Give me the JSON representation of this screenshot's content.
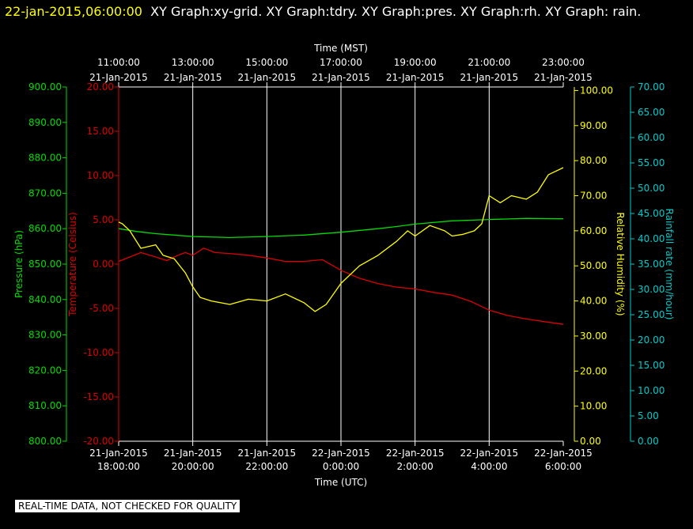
{
  "header": {
    "timestamp": "22-jan-2015,06:00:00",
    "titles": "XY Graph:xy-grid.  XY Graph:tdry.  XY Graph:pres.  XY Graph:rh.  XY Graph: rain."
  },
  "footer": {
    "notice": "REAL-TIME DATA, NOT CHECKED FOR QUALITY"
  },
  "colors": {
    "pressure": "#00dd00",
    "temperature": "#dd0000",
    "humidity": "#ffff00",
    "rain": "#00cccc",
    "grid": "#ffffff"
  },
  "chart_data": {
    "type": "line",
    "top_axis": {
      "label": "Time (MST)",
      "ticks": [
        {
          "time": "11:00:00",
          "date": "21-Jan-2015"
        },
        {
          "time": "13:00:00",
          "date": "21-Jan-2015"
        },
        {
          "time": "15:00:00",
          "date": "21-Jan-2015"
        },
        {
          "time": "17:00:00",
          "date": "21-Jan-2015"
        },
        {
          "time": "19:00:00",
          "date": "21-Jan-2015"
        },
        {
          "time": "21:00:00",
          "date": "21-Jan-2015"
        },
        {
          "time": "23:00:00",
          "date": "21-Jan-2015"
        }
      ]
    },
    "bottom_axis": {
      "label": "Time (UTC)",
      "ticks": [
        {
          "date": "21-Jan-2015",
          "time": "18:00:00"
        },
        {
          "date": "21-Jan-2015",
          "time": "20:00:00"
        },
        {
          "date": "21-Jan-2015",
          "time": "22:00:00"
        },
        {
          "date": "22-Jan-2015",
          "time": "0:00:00"
        },
        {
          "date": "22-Jan-2015",
          "time": "2:00:00"
        },
        {
          "date": "22-Jan-2015",
          "time": "4:00:00"
        },
        {
          "date": "22-Jan-2015",
          "time": "6:00:00"
        }
      ],
      "xlim": [
        0,
        12
      ]
    },
    "axes": {
      "pressure": {
        "label": "Pressure (hPa)",
        "ylim": [
          800,
          900
        ],
        "ticks": [
          "800.00",
          "810.00",
          "820.00",
          "830.00",
          "840.00",
          "850.00",
          "860.00",
          "870.00",
          "880.00",
          "890.00",
          "900.00"
        ]
      },
      "temperature": {
        "label": "Temperature (Celsius)",
        "ylim": [
          -20,
          20
        ],
        "ticks": [
          "-20.00",
          "-15.00",
          "-10.00",
          "-5.00",
          "0.00",
          "5.00",
          "10.00",
          "15.00",
          "20.00"
        ]
      },
      "humidity": {
        "label": "Relative Humidity (%)",
        "ylim": [
          0,
          101
        ],
        "ticks": [
          "0.00",
          "10.00",
          "20.00",
          "30.00",
          "40.00",
          "50.00",
          "60.00",
          "70.00",
          "80.00",
          "90.00",
          "100.00"
        ]
      },
      "rain": {
        "label": "Rainfall rate (mm/hour)",
        "ylim": [
          0,
          70
        ],
        "ticks": [
          "0.00",
          "5.00",
          "10.00",
          "15.00",
          "20.00",
          "25.00",
          "30.00",
          "35.00",
          "40.00",
          "45.00",
          "50.00",
          "55.00",
          "60.00",
          "65.00",
          "70.00"
        ]
      }
    },
    "series": [
      {
        "axis": "pressure",
        "x": [
          0,
          0.5,
          1,
          1.5,
          2,
          3,
          4,
          5,
          6,
          7,
          7.5,
          8,
          9,
          10,
          11,
          12
        ],
        "y": [
          860,
          859.2,
          858.6,
          858.2,
          857.8,
          857.5,
          857.8,
          858.2,
          859,
          860,
          860.6,
          861.3,
          862.2,
          862.6,
          862.9,
          862.8
        ]
      },
      {
        "axis": "temperature",
        "x": [
          0,
          0.3,
          0.6,
          1,
          1.3,
          1.6,
          1.8,
          2,
          2.3,
          2.6,
          3,
          3.5,
          4,
          4.5,
          5,
          5.5,
          6,
          6.5,
          7,
          7.5,
          8,
          8.5,
          9,
          9.5,
          10,
          10.5,
          11,
          11.5,
          12
        ],
        "y": [
          0.3,
          0.8,
          1.3,
          0.8,
          0.4,
          1.0,
          1.3,
          1.0,
          1.8,
          1.3,
          1.2,
          1.0,
          0.7,
          0.3,
          0.3,
          0.5,
          -0.7,
          -1.6,
          -2.2,
          -2.6,
          -2.8,
          -3.2,
          -3.5,
          -4.2,
          -5.2,
          -5.8,
          -6.2,
          -6.5,
          -6.8
        ]
      },
      {
        "axis": "humidity",
        "x": [
          0,
          0.1,
          0.3,
          0.6,
          1,
          1.2,
          1.5,
          1.8,
          2,
          2.2,
          2.5,
          3,
          3.5,
          4,
          4.5,
          5,
          5.3,
          5.6,
          6,
          6.5,
          7,
          7.5,
          7.8,
          8,
          8.4,
          8.8,
          9,
          9.3,
          9.6,
          9.8,
          10,
          10.3,
          10.6,
          11,
          11.3,
          11.6,
          12
        ],
        "y": [
          62.5,
          62,
          60,
          55,
          56,
          53,
          52,
          48,
          44,
          41,
          40,
          39,
          40.5,
          40,
          42,
          39.5,
          37,
          39,
          45,
          50,
          53,
          57,
          60,
          58.5,
          61.5,
          60,
          58.5,
          59,
          60,
          62,
          70,
          68,
          70,
          69,
          71,
          76,
          78
        ]
      },
      {
        "axis": "rain",
        "x": [],
        "y": []
      }
    ]
  }
}
